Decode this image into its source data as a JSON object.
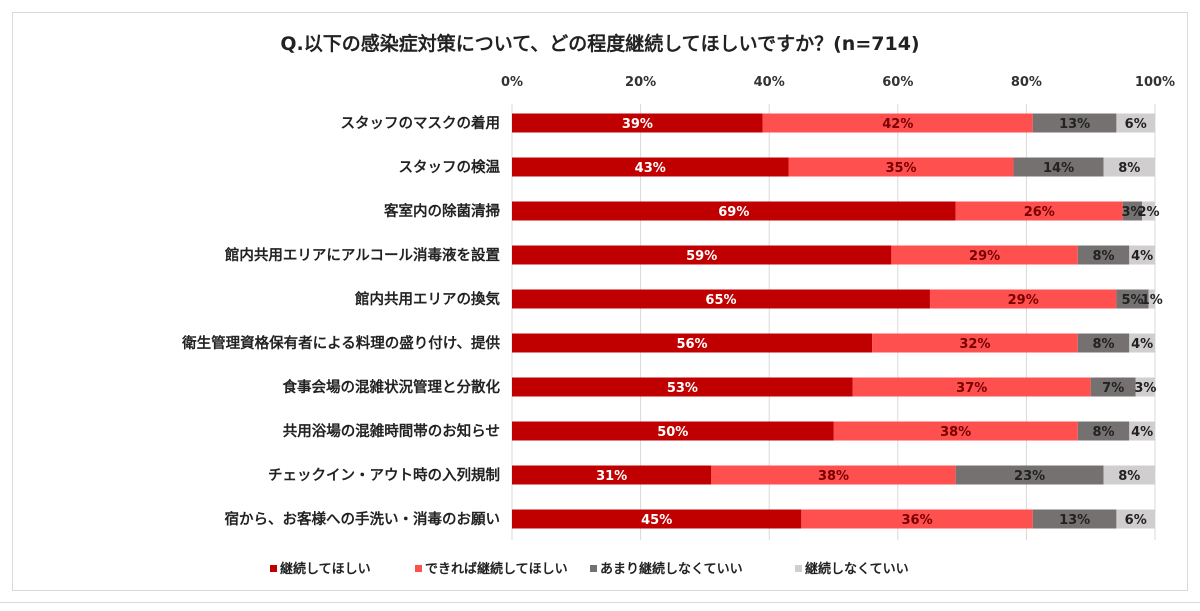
{
  "chart_data": {
    "type": "bar",
    "orientation": "horizontal",
    "stacked": "percent",
    "title": "Q.以下の感染症対策について、どの程度継続してほしいですか？(n=714)",
    "xlim": [
      0,
      100
    ],
    "x_ticks": [
      "0%",
      "20%",
      "40%",
      "60%",
      "80%",
      "100%"
    ],
    "x_tick_position": "top",
    "grid": true,
    "legend_position": "bottom",
    "categories": [
      "スタッフのマスクの着用",
      "スタッフの検温",
      "客室内の除菌清掃",
      "館内共用エリアにアルコール消毒液を設置",
      "館内共用エリアの換気",
      "衛生管理資格保有者による料理の盛り付け、提供",
      "食事会場の混雑状況管理と分散化",
      "共用浴場の混雑時間帯のお知らせ",
      "チェックイン・アウト時の入列規制",
      "宿から、お客様への手洗い・消毒のお願い"
    ],
    "series": [
      {
        "name": "継続してほしい",
        "color": "#c00000",
        "label_color": "#ffffff",
        "values": [
          39,
          43,
          69,
          59,
          65,
          56,
          53,
          50,
          31,
          45
        ]
      },
      {
        "name": "できれば継続してほしい",
        "color": "#ff5050",
        "label_color": "#7a0000",
        "values": [
          42,
          35,
          26,
          29,
          29,
          32,
          37,
          38,
          38,
          36
        ]
      },
      {
        "name": "あまり継続しなくていい",
        "color": "#767171",
        "label_color": "#222222",
        "values": [
          13,
          14,
          3,
          8,
          5,
          8,
          7,
          8,
          23,
          13
        ]
      },
      {
        "name": "継続しなくていい",
        "color": "#d0cece",
        "label_color": "#222222",
        "values": [
          6,
          8,
          2,
          4,
          1,
          4,
          3,
          4,
          8,
          6
        ]
      }
    ],
    "value_suffix": "%"
  }
}
